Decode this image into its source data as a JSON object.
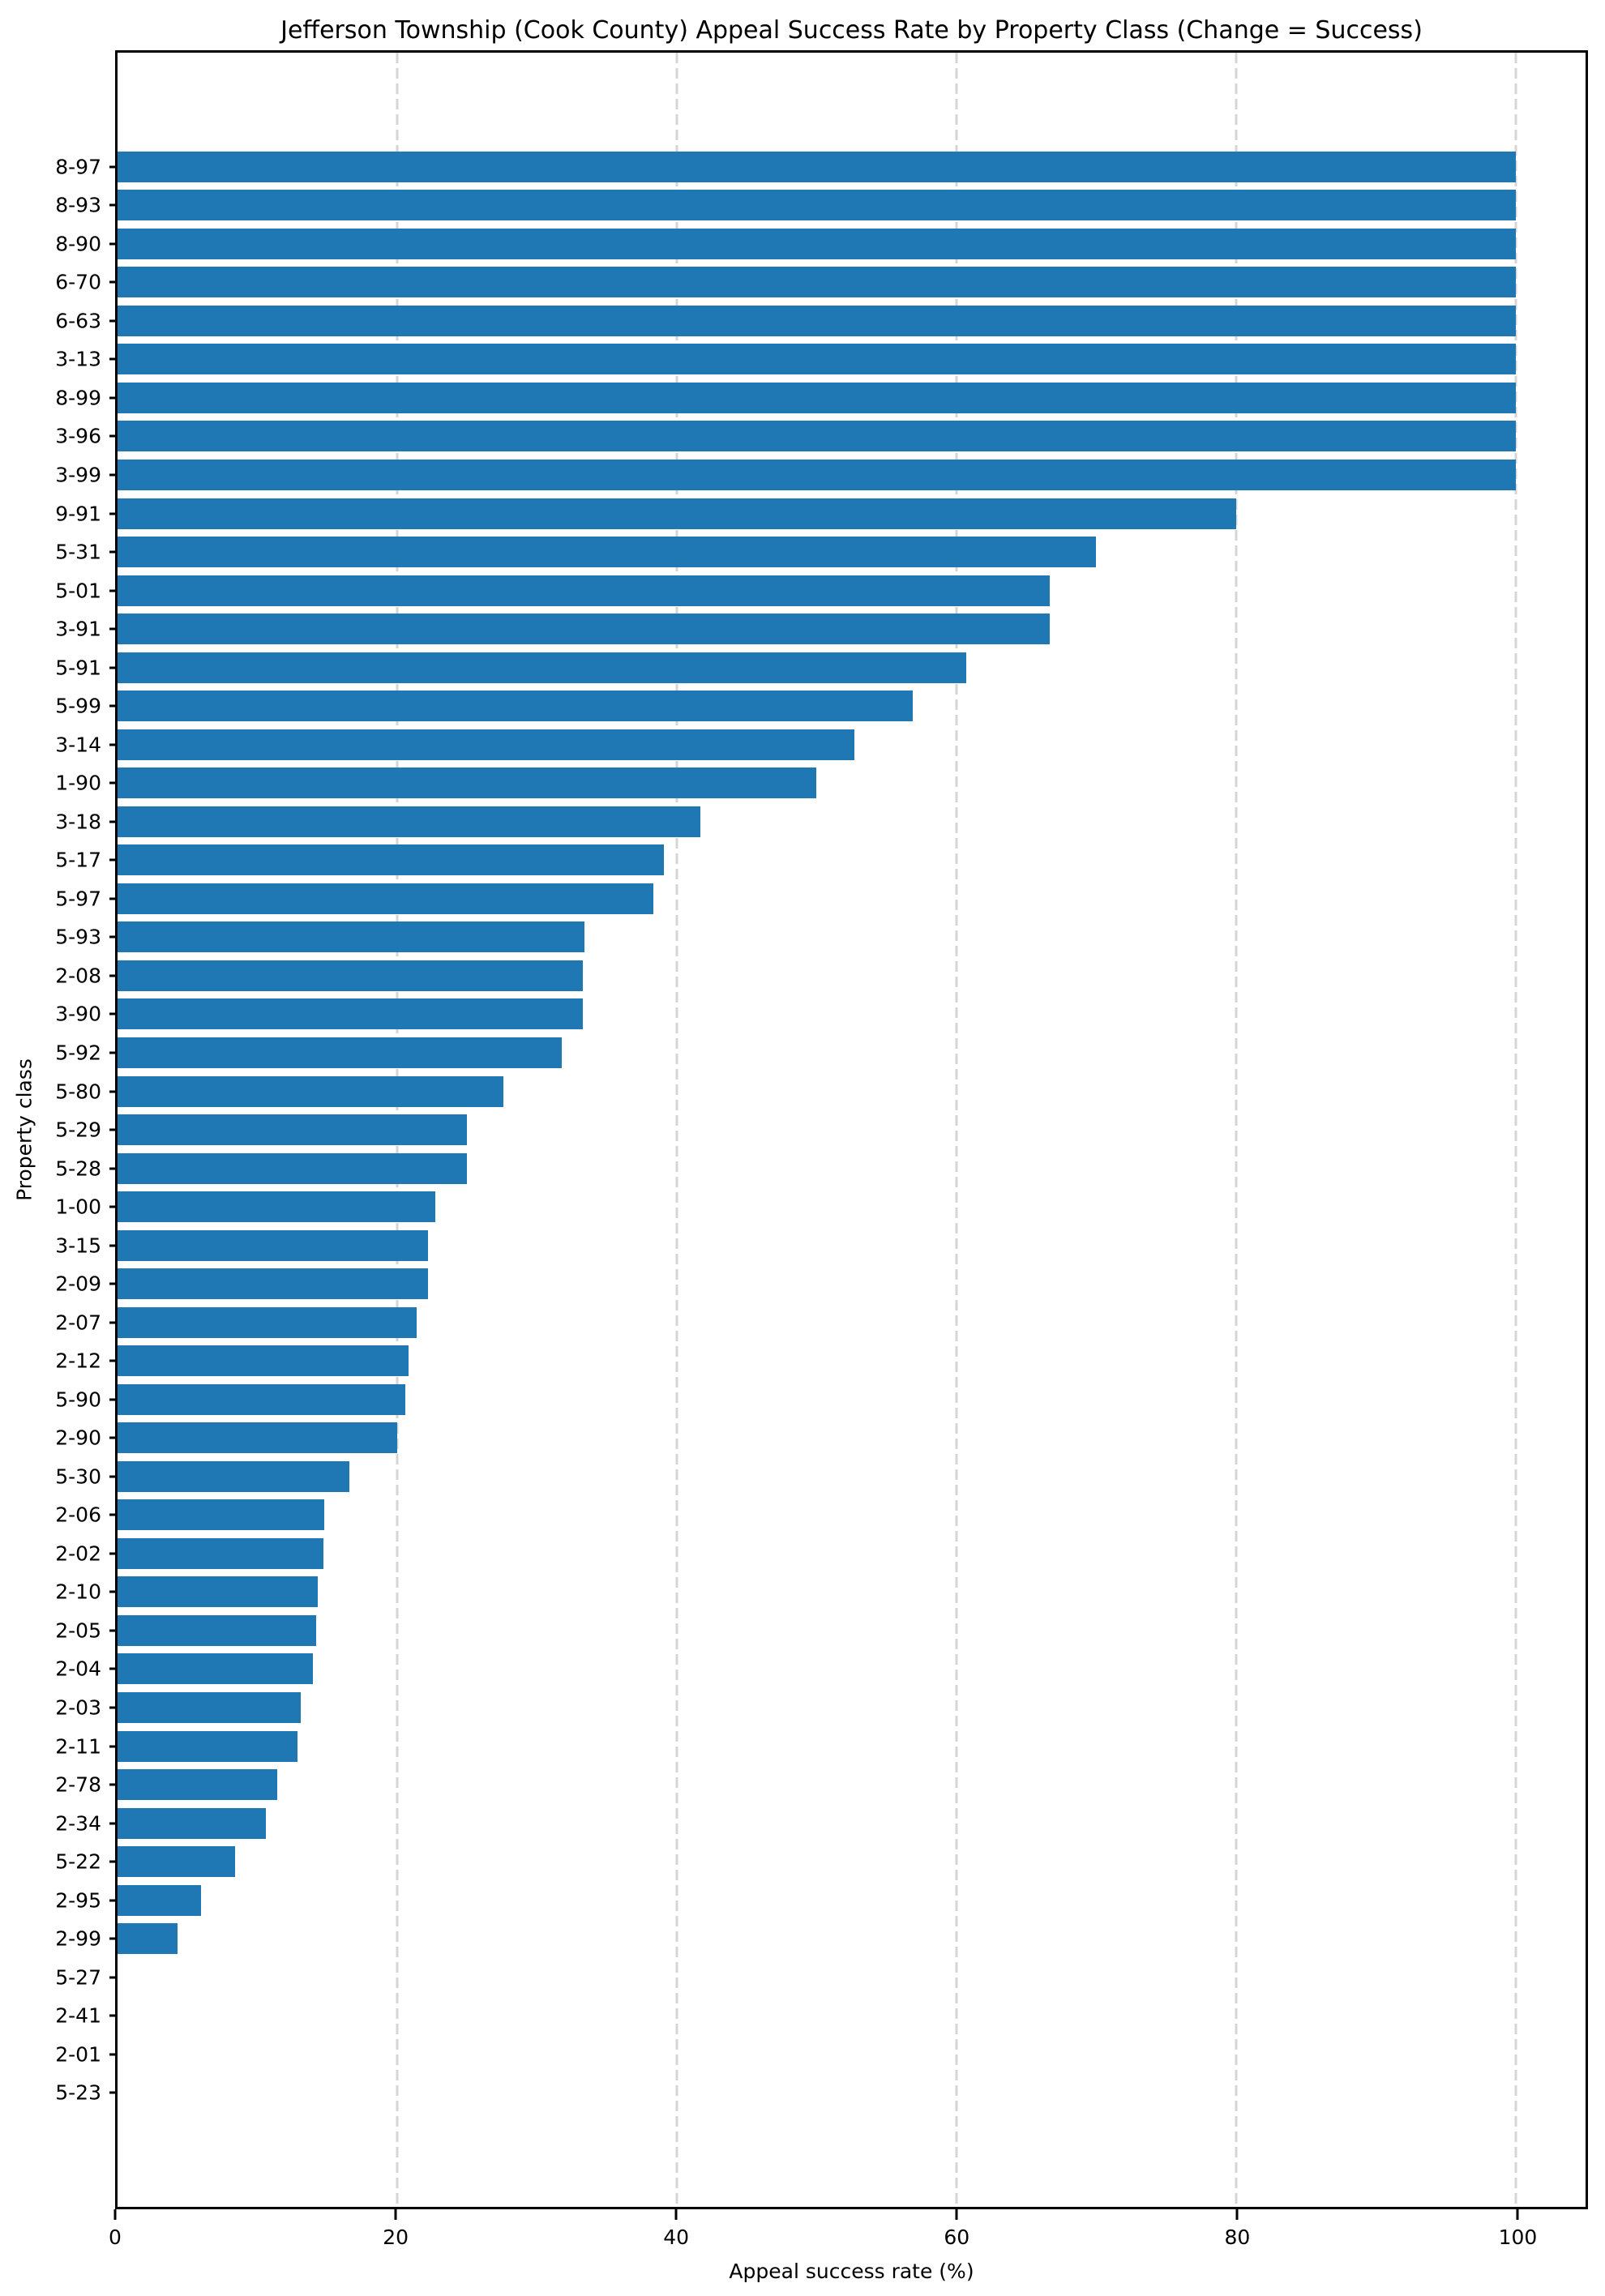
{
  "chart_data": {
    "type": "bar",
    "orientation": "horizontal",
    "title": "Jefferson Township (Cook County) Appeal Success Rate by Property Class (Change = Success)",
    "xlabel": "Appeal success rate (%)",
    "ylabel": "Property class",
    "xlim": [
      0,
      105
    ],
    "xticks": [
      0,
      20,
      40,
      60,
      80,
      100
    ],
    "grid": "vertical dashed gridlines at x = 20, 40, 60, 80, 100",
    "legend": "none",
    "bar_color": "#1f77b4",
    "gridline_color": "#d5d5d5",
    "categories": [
      "8-97",
      "8-93",
      "8-90",
      "6-70",
      "6-63",
      "3-13",
      "8-99",
      "3-96",
      "3-99",
      "9-91",
      "5-31",
      "5-01",
      "3-91",
      "5-91",
      "5-99",
      "3-14",
      "1-90",
      "3-18",
      "5-17",
      "5-97",
      "5-93",
      "2-08",
      "3-90",
      "5-92",
      "5-80",
      "5-29",
      "5-28",
      "1-00",
      "3-15",
      "2-09",
      "2-07",
      "2-12",
      "5-90",
      "2-90",
      "5-30",
      "2-06",
      "2-02",
      "2-10",
      "2-05",
      "2-04",
      "2-03",
      "2-11",
      "2-78",
      "2-34",
      "5-22",
      "2-95",
      "2-99",
      "5-27",
      "2-41",
      "2-01",
      "5-23"
    ],
    "values": [
      100.0,
      100.0,
      100.0,
      100.0,
      100.0,
      100.0,
      100.0,
      100.0,
      100.0,
      80.0,
      70.0,
      66.7,
      66.7,
      60.7,
      56.9,
      52.7,
      50.0,
      41.7,
      39.1,
      38.3,
      33.4,
      33.3,
      33.3,
      31.8,
      27.6,
      25.0,
      25.0,
      22.7,
      22.2,
      22.2,
      21.4,
      20.8,
      20.6,
      20.0,
      16.6,
      14.8,
      14.7,
      14.3,
      14.2,
      14.0,
      13.1,
      12.9,
      11.4,
      10.6,
      8.4,
      6.0,
      4.3,
      0.0,
      0.0,
      0.0,
      0.0
    ]
  }
}
